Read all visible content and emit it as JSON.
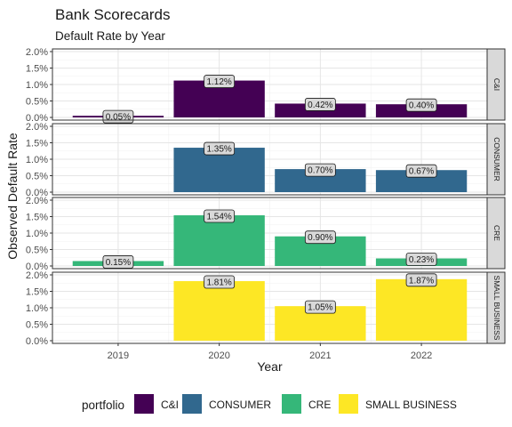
{
  "chart_data": {
    "type": "bar",
    "title": "Bank Scorecards",
    "subtitle": "Default Rate by Year",
    "xlabel": "Year",
    "ylabel": "Observed Default Rate",
    "categories": [
      "2019",
      "2020",
      "2021",
      "2022"
    ],
    "ylim": [
      0,
      2.0
    ],
    "yticks": [
      0.0,
      0.5,
      1.0,
      1.5,
      2.0
    ],
    "ytick_labels": [
      "0.0%",
      "0.5%",
      "1.0%",
      "1.5%",
      "2.0%"
    ],
    "grid": true,
    "facets": "rows by portfolio",
    "legend_title": "portfolio",
    "legend_position": "bottom",
    "series": [
      {
        "name": "C&I",
        "color": "#440154",
        "values": [
          0.05,
          1.12,
          0.42,
          0.4
        ],
        "labels": [
          "0.05%",
          "1.12%",
          "0.42%",
          "0.40%"
        ]
      },
      {
        "name": "CONSUMER",
        "color": "#31688E",
        "values": [
          null,
          1.35,
          0.7,
          0.67
        ],
        "labels": [
          "",
          "1.35%",
          "0.70%",
          "0.67%"
        ]
      },
      {
        "name": "CRE",
        "color": "#35B779",
        "values": [
          0.15,
          1.54,
          0.9,
          0.23
        ],
        "labels": [
          "0.15%",
          "1.54%",
          "0.90%",
          "0.23%"
        ]
      },
      {
        "name": "SMALL BUSINESS",
        "color": "#FDE725",
        "values": [
          null,
          1.81,
          1.05,
          1.87
        ],
        "labels": [
          "",
          "1.81%",
          "1.05%",
          "1.87%"
        ]
      }
    ]
  }
}
